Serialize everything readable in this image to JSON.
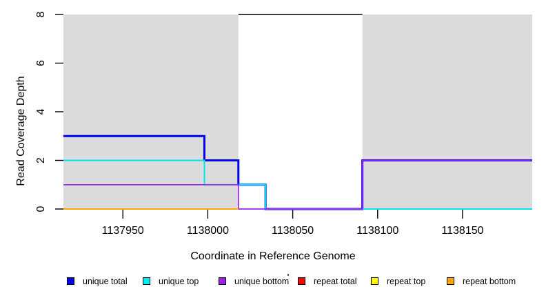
{
  "chart_data": {
    "type": "line",
    "line_style": "step",
    "title": "",
    "xlabel": "Coordinate in Reference Genome",
    "ylabel": "Read Coverage Depth",
    "xlim": [
      1137915,
      1138191
    ],
    "ylim": [
      0,
      8
    ],
    "x_ticks": [
      1137950,
      1138000,
      1138050,
      1138100,
      1138150
    ],
    "y_ticks": [
      0,
      2,
      4,
      6,
      8
    ],
    "grid": false,
    "shaded_regions": {
      "color": "#DCDCDC",
      "x_ranges": [
        [
          1137915,
          1138018
        ],
        [
          1138091,
          1138191
        ]
      ]
    },
    "series": [
      {
        "name": "unique total",
        "color": "#0000EE",
        "width": 3,
        "points": [
          [
            1137915,
            3
          ],
          [
            1137998,
            3
          ],
          [
            1137998,
            2
          ],
          [
            1138018,
            2
          ],
          [
            1138018,
            1
          ],
          [
            1138034,
            1
          ],
          [
            1138034,
            0
          ],
          [
            1138091,
            0
          ],
          [
            1138091,
            2
          ],
          [
            1138191,
            2
          ]
        ]
      },
      {
        "name": "unique top",
        "color": "#00E5EE",
        "width": 2,
        "points": [
          [
            1137915,
            2
          ],
          [
            1137998,
            2
          ],
          [
            1137998,
            1
          ],
          [
            1138034,
            1
          ],
          [
            1138034,
            0
          ],
          [
            1138191,
            0
          ]
        ]
      },
      {
        "name": "unique bottom",
        "color": "#A020F0",
        "width": 1.7,
        "points": [
          [
            1137915,
            1
          ],
          [
            1138018,
            1
          ],
          [
            1138018,
            0
          ],
          [
            1138091,
            0
          ],
          [
            1138091,
            2
          ],
          [
            1138191,
            2
          ]
        ]
      },
      {
        "name": "repeat bottom",
        "color": "#FFA500",
        "width": 2,
        "points": [
          [
            1137915,
            0
          ],
          [
            1138018,
            0
          ]
        ]
      },
      {
        "name": "repeat total",
        "color": "#000000",
        "width": 1.5,
        "points": [
          [
            1138018,
            8
          ],
          [
            1138091,
            8
          ]
        ]
      }
    ],
    "legend_position": "bottom",
    "legend": [
      {
        "label": "unique total",
        "color": "#0000EE"
      },
      {
        "label": "unique top",
        "color": "#00EEEE"
      },
      {
        "label": "unique bottom",
        "color": "#A020F0"
      },
      {
        "label": "repeat total",
        "color": "#FF0000"
      },
      {
        "label": "repeat top",
        "color": "#FFFF00"
      },
      {
        "label": "repeat bottom",
        "color": "#FFA500"
      }
    ]
  }
}
